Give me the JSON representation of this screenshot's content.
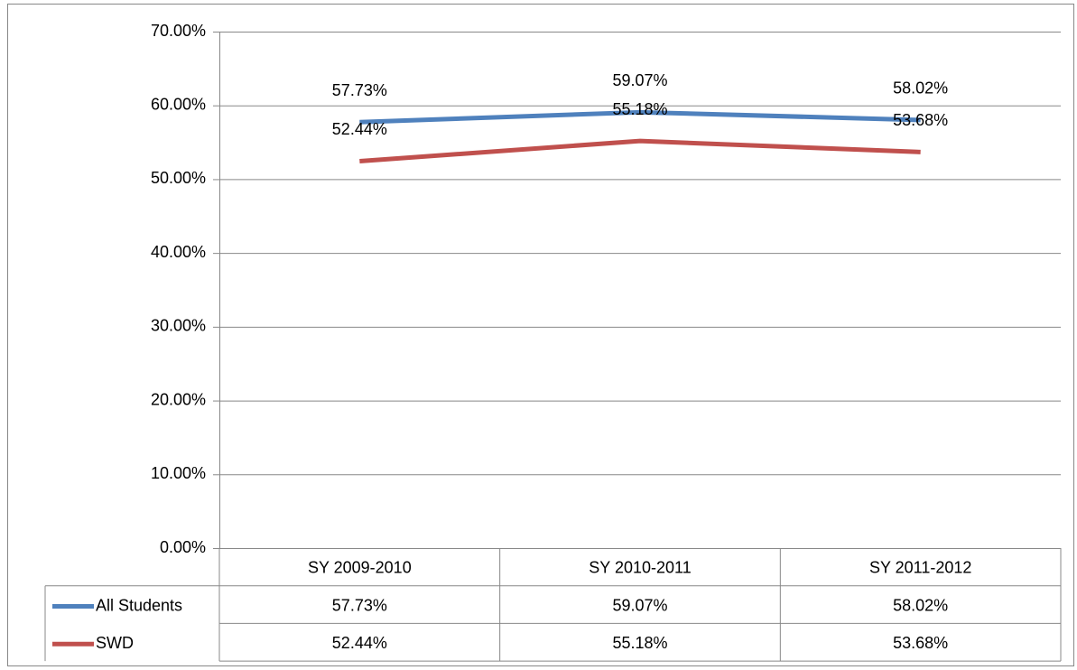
{
  "chart_data": {
    "type": "line",
    "categories": [
      "SY 2009-2010",
      "SY 2010-2011",
      "SY 2011-2012"
    ],
    "series": [
      {
        "name": "All Students",
        "color": "#4f81bd",
        "values": [
          57.73,
          59.07,
          58.02
        ],
        "value_labels": [
          "57.73%",
          "59.07%",
          "58.02%"
        ]
      },
      {
        "name": "SWD",
        "color": "#c0504d",
        "values": [
          52.44,
          55.18,
          53.68
        ],
        "value_labels": [
          "52.44%",
          "55.18%",
          "53.68%"
        ]
      }
    ],
    "ylim": [
      0,
      70
    ],
    "yticks": [
      {
        "value": 0,
        "label": "0.00%"
      },
      {
        "value": 10,
        "label": "10.00%"
      },
      {
        "value": 20,
        "label": "20.00%"
      },
      {
        "value": 30,
        "label": "30.00%"
      },
      {
        "value": 40,
        "label": "40.00%"
      },
      {
        "value": 50,
        "label": "50.00%"
      },
      {
        "value": 60,
        "label": "60.00%"
      },
      {
        "value": 70,
        "label": "70.00%"
      }
    ],
    "grid": true,
    "data_table": true
  }
}
